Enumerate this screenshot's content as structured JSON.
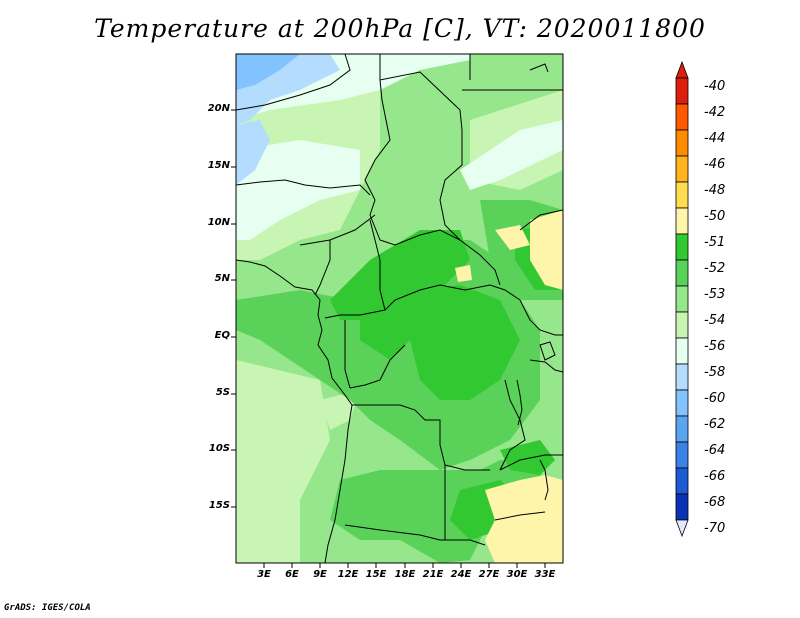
{
  "title": "Temperature at 200hPa [C], VT: 2020011800",
  "credit": "GrADS: IGES/COLA",
  "lat_labels": [
    "20N",
    "15N",
    "10N",
    "5N",
    "EQ",
    "5S",
    "10S",
    "15S"
  ],
  "lon_labels": [
    "3E",
    "6E",
    "9E",
    "12E",
    "15E",
    "18E",
    "21E",
    "24E",
    "27E",
    "30E",
    "33E"
  ],
  "colorbar": {
    "labels": [
      "-40",
      "-42",
      "-44",
      "-46",
      "-48",
      "-50",
      "-51",
      "-52",
      "-53",
      "-54",
      "-56",
      "-58",
      "-60",
      "-62",
      "-64",
      "-66",
      "-68",
      "-70"
    ],
    "colors": [
      "#dc1e0a",
      "#ff5a00",
      "#ff8c00",
      "#ffb41e",
      "#ffdc50",
      "#fff5aa",
      "#32c832",
      "#5ad25a",
      "#96e68c",
      "#c8f5b4",
      "#e6fff0",
      "#b4dcff",
      "#82c3ff",
      "#5aa5f0",
      "#3c82e6",
      "#1e5ad2",
      "#0a32b4",
      "#000a7d"
    ],
    "arrow_top_color": "#dc1e0a",
    "arrow_bottom_color": "#e6e6ff"
  }
}
